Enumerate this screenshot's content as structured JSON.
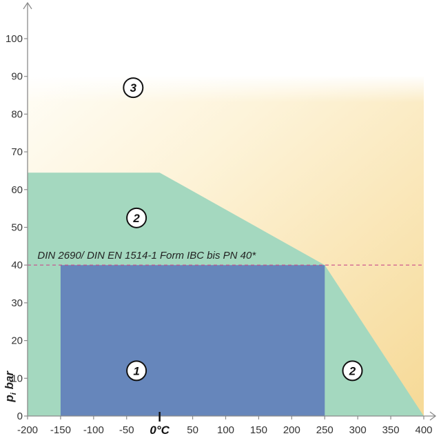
{
  "chart_data": {
    "type": "area",
    "title": "",
    "xlabel": "0°C",
    "ylabel": "p",
    "ylabel_subscript": "i",
    "ylabel_suffix": " bar",
    "xlim": [
      -200,
      400
    ],
    "ylim": [
      0,
      100
    ],
    "x_ticks": [
      -200,
      -150,
      -100,
      -50,
      50,
      100,
      150,
      200,
      250,
      300,
      350,
      400
    ],
    "y_ticks": [
      0,
      10,
      20,
      30,
      40,
      50,
      60,
      70,
      80,
      90,
      100
    ],
    "zero_marker_x": 0,
    "grid": false,
    "regions": [
      {
        "name": "3",
        "fill": "#fbe9bd",
        "polygon": [
          [
            -200,
            90
          ],
          [
            400,
            90
          ],
          [
            400,
            0
          ],
          [
            -200,
            0
          ]
        ],
        "label_at": [
          -40,
          87
        ]
      },
      {
        "name": "2",
        "fill": "#a4d8bf",
        "polygon": [
          [
            -200,
            0
          ],
          [
            -200,
            64.5
          ],
          [
            0,
            64.5
          ],
          [
            250,
            40
          ],
          [
            400,
            0
          ]
        ],
        "label_at": [
          -35,
          52.5
        ]
      },
      {
        "name": "2",
        "fill": "#a4d8bf",
        "polygon": [],
        "label_at": [
          292,
          12
        ]
      },
      {
        "name": "1",
        "fill": "#6686bb",
        "polygon": [
          [
            -150,
            0
          ],
          [
            -150,
            40
          ],
          [
            250,
            40
          ],
          [
            250,
            0
          ]
        ],
        "label_at": [
          -35,
          12
        ]
      }
    ],
    "reference_line": {
      "y": 40,
      "color": "#c94a8a",
      "label": "DIN 2690/ DIN EN 1514-1 Form IBC bis PN 40*",
      "label_x": -185
    }
  }
}
